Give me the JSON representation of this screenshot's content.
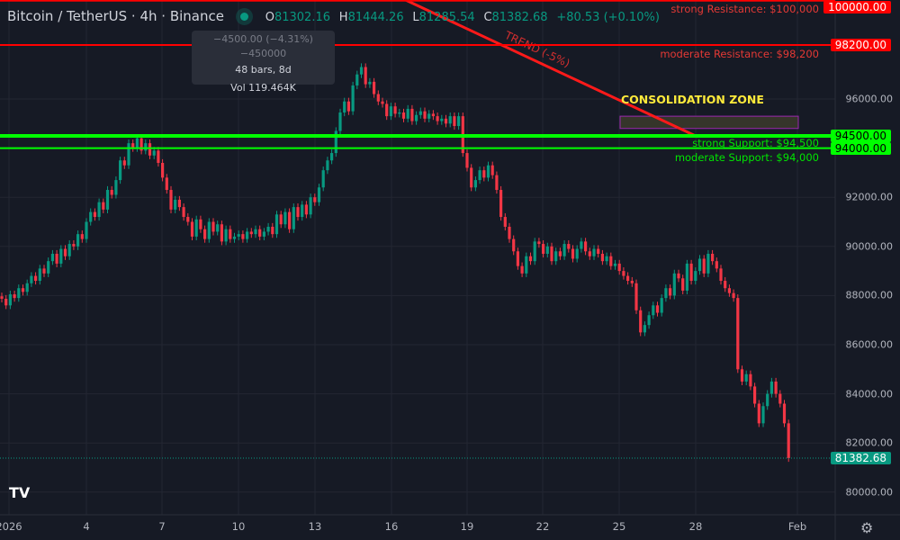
{
  "header": {
    "title": "Bitcoin / TetherUS · 4h · Binance",
    "open": "81302.16",
    "high": "81444.26",
    "low": "81285.54",
    "close": "81382.68",
    "change": "+80.53 (+0.10%)",
    "o_label": "O",
    "h_label": "H",
    "l_label": "L",
    "c_label": "C"
  },
  "tooltip": {
    "measure": "−4500.00 (−4.31%) −450000",
    "bars": "48 bars, 8d",
    "volume": "Vol 119.464K"
  },
  "annotations": {
    "consolidation": "CONSOLIDATION ZONE",
    "trend_text": "TREND (-5%)",
    "levels": [
      {
        "label": "strong Resistance: $100,000",
        "price": 100000,
        "tag": "100000.00",
        "color": "#ff0000"
      },
      {
        "label": "moderate Resistance: $98,200",
        "price": 98200,
        "tag": "98200.00",
        "color": "#ff0000"
      },
      {
        "label": "strong Support: $94,500",
        "price": 94500,
        "tag": "94500.00",
        "color": "#00ff00"
      },
      {
        "label": "moderate Support: $94,000",
        "price": 94000,
        "tag": "94000.00",
        "color": "#00ff00"
      }
    ],
    "consolidation_range": [
      94800,
      95300
    ]
  },
  "current_price": "81382.68",
  "colors": {
    "up": "#089981",
    "down": "#f23645",
    "background": "#161a25",
    "grid": "#232632"
  },
  "icons": [
    "tradingview-logo-icon",
    "settings-gear-icon"
  ],
  "chart_data": {
    "type": "candlestick",
    "interval": "4h",
    "ylim": [
      79500,
      100200
    ],
    "grid": true,
    "yticks": [
      "96000.00",
      "92000.00",
      "90000.00",
      "88000.00",
      "86000.00",
      "84000.00",
      "82000.00",
      "80000.00"
    ],
    "xticks": [
      "2026",
      "4",
      "7",
      "10",
      "13",
      "16",
      "19",
      "22",
      "25",
      "28",
      "Feb"
    ],
    "closes": [
      87870,
      87600,
      88050,
      87900,
      88300,
      88150,
      88500,
      88800,
      88600,
      89100,
      88900,
      89400,
      89700,
      89300,
      89900,
      89600,
      90100,
      90000,
      90500,
      90300,
      91000,
      91400,
      91200,
      91800,
      91500,
      92300,
      92100,
      92700,
      93500,
      93300,
      94200,
      94000,
      94400,
      93900,
      94200,
      93700,
      93900,
      93400,
      92800,
      92300,
      91500,
      91900,
      91600,
      91200,
      91000,
      90400,
      91100,
      90700,
      90300,
      91000,
      90600,
      90900,
      90200,
      90700,
      90300,
      90400,
      90500,
      90300,
      90600,
      90500,
      90700,
      90400,
      90600,
      90800,
      90500,
      91300,
      90900,
      91400,
      90700,
      91600,
      91200,
      91700,
      91300,
      92000,
      91800,
      92400,
      93100,
      93500,
      93800,
      94700,
      95450,
      95900,
      95500,
      96550,
      97000,
      97300,
      96600,
      96700,
      96200,
      95900,
      95800,
      95300,
      95700,
      95400,
      95450,
      95200,
      95600,
      95100,
      95350,
      95500,
      95200,
      95400,
      95300,
      95100,
      95200,
      95000,
      95300,
      94900,
      95300,
      93800,
      93200,
      92400,
      92700,
      93100,
      92800,
      93300,
      92900,
      92300,
      91200,
      90800,
      90300,
      89800,
      89200,
      88900,
      89600,
      89400,
      90200,
      90100,
      89700,
      90000,
      89400,
      89800,
      89600,
      90100,
      89900,
      89500,
      89900,
      90200,
      89800,
      89600,
      89900,
      89700,
      89400,
      89600,
      89200,
      89300,
      89000,
      88800,
      88600,
      88500,
      87400,
      86500,
      86800,
      87200,
      87600,
      87300,
      87900,
      88300,
      88000,
      88900,
      88700,
      88200,
      89300,
      88600,
      89000,
      89500,
      88900,
      89700,
      89400,
      89100,
      88600,
      88300,
      88100,
      87900,
      85000,
      84500,
      84800,
      84300,
      83600,
      82800,
      83500,
      84000,
      84500,
      84000,
      83600,
      82800,
      81382.68
    ]
  }
}
